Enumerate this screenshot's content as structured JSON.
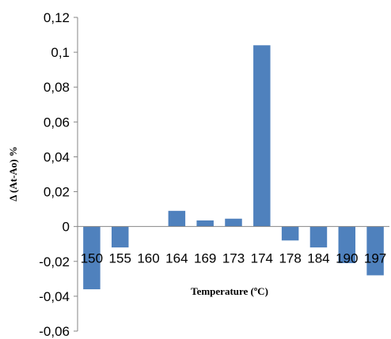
{
  "chart_data": {
    "type": "bar",
    "categories": [
      "150",
      "155",
      "160",
      "164",
      "169",
      "173",
      "174",
      "178",
      "184",
      "190",
      "197"
    ],
    "values": [
      -0.036,
      -0.012,
      0,
      0.009,
      0.0035,
      0.0045,
      0.104,
      -0.008,
      -0.012,
      -0.021,
      -0.028
    ],
    "xlabel": "Temperature (ºC)",
    "ylabel": "Δ (At-Ao) %",
    "ylim": [
      -0.06,
      0.12
    ],
    "yticks": [
      "0,12",
      "0,1",
      "0,08",
      "0,06",
      "0,04",
      "0,02",
      "0",
      "-0,02",
      "-0,04",
      "-0,06"
    ],
    "ytick_values": [
      0.12,
      0.1,
      0.08,
      0.06,
      0.04,
      0.02,
      0,
      -0.02,
      -0.04,
      -0.06
    ],
    "bar_color": "#4F81BD",
    "axis_color": "#868686",
    "grid": false,
    "legend": "none"
  }
}
